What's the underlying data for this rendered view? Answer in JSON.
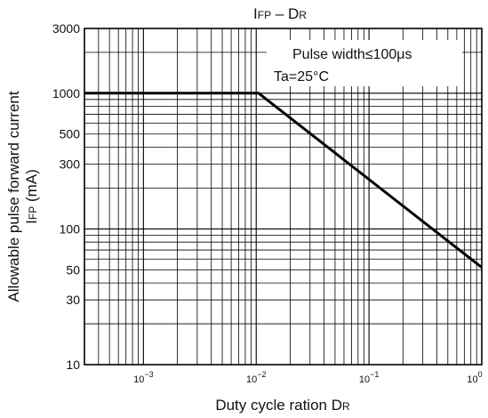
{
  "chart_data": {
    "type": "line",
    "title": "IFP – DR",
    "title_main": "I",
    "title_sub_1": "FP",
    "title_dash": " – D",
    "title_sub_2": "R",
    "xlabel": "Duty cycle ration DR",
    "xlabel_main": "Duty cycle ration D",
    "xlabel_sub": "R",
    "ylabel_line1": "Allowable pulse forward current",
    "ylabel_line2_main": "I",
    "ylabel_line2_sub": "FP",
    "ylabel_line2_unit": " (mA)",
    "x_scale": "log",
    "y_scale": "log",
    "xlim": [
      0.0003,
      1
    ],
    "ylim": [
      10,
      3000
    ],
    "x_tick_labels": [
      {
        "value": 0.001,
        "base": "10",
        "exp": "−3"
      },
      {
        "value": 0.01,
        "base": "10",
        "exp": "−2"
      },
      {
        "value": 0.1,
        "base": "10",
        "exp": "−1"
      },
      {
        "value": 1,
        "base": "10",
        "exp": "0"
      }
    ],
    "y_ticks": [
      10,
      30,
      50,
      100,
      300,
      500,
      1000,
      3000
    ],
    "y_tick_labels": [
      "10",
      "30",
      "50",
      "100",
      "300",
      "500",
      "1000",
      "3000"
    ],
    "grid": true,
    "annotations": [
      "Pulse width≤100μs",
      "Ta=25°C"
    ],
    "series": [
      {
        "x": [
          0.0003,
          0.0105,
          1
        ],
        "y": [
          1000,
          1000,
          52
        ]
      }
    ]
  }
}
